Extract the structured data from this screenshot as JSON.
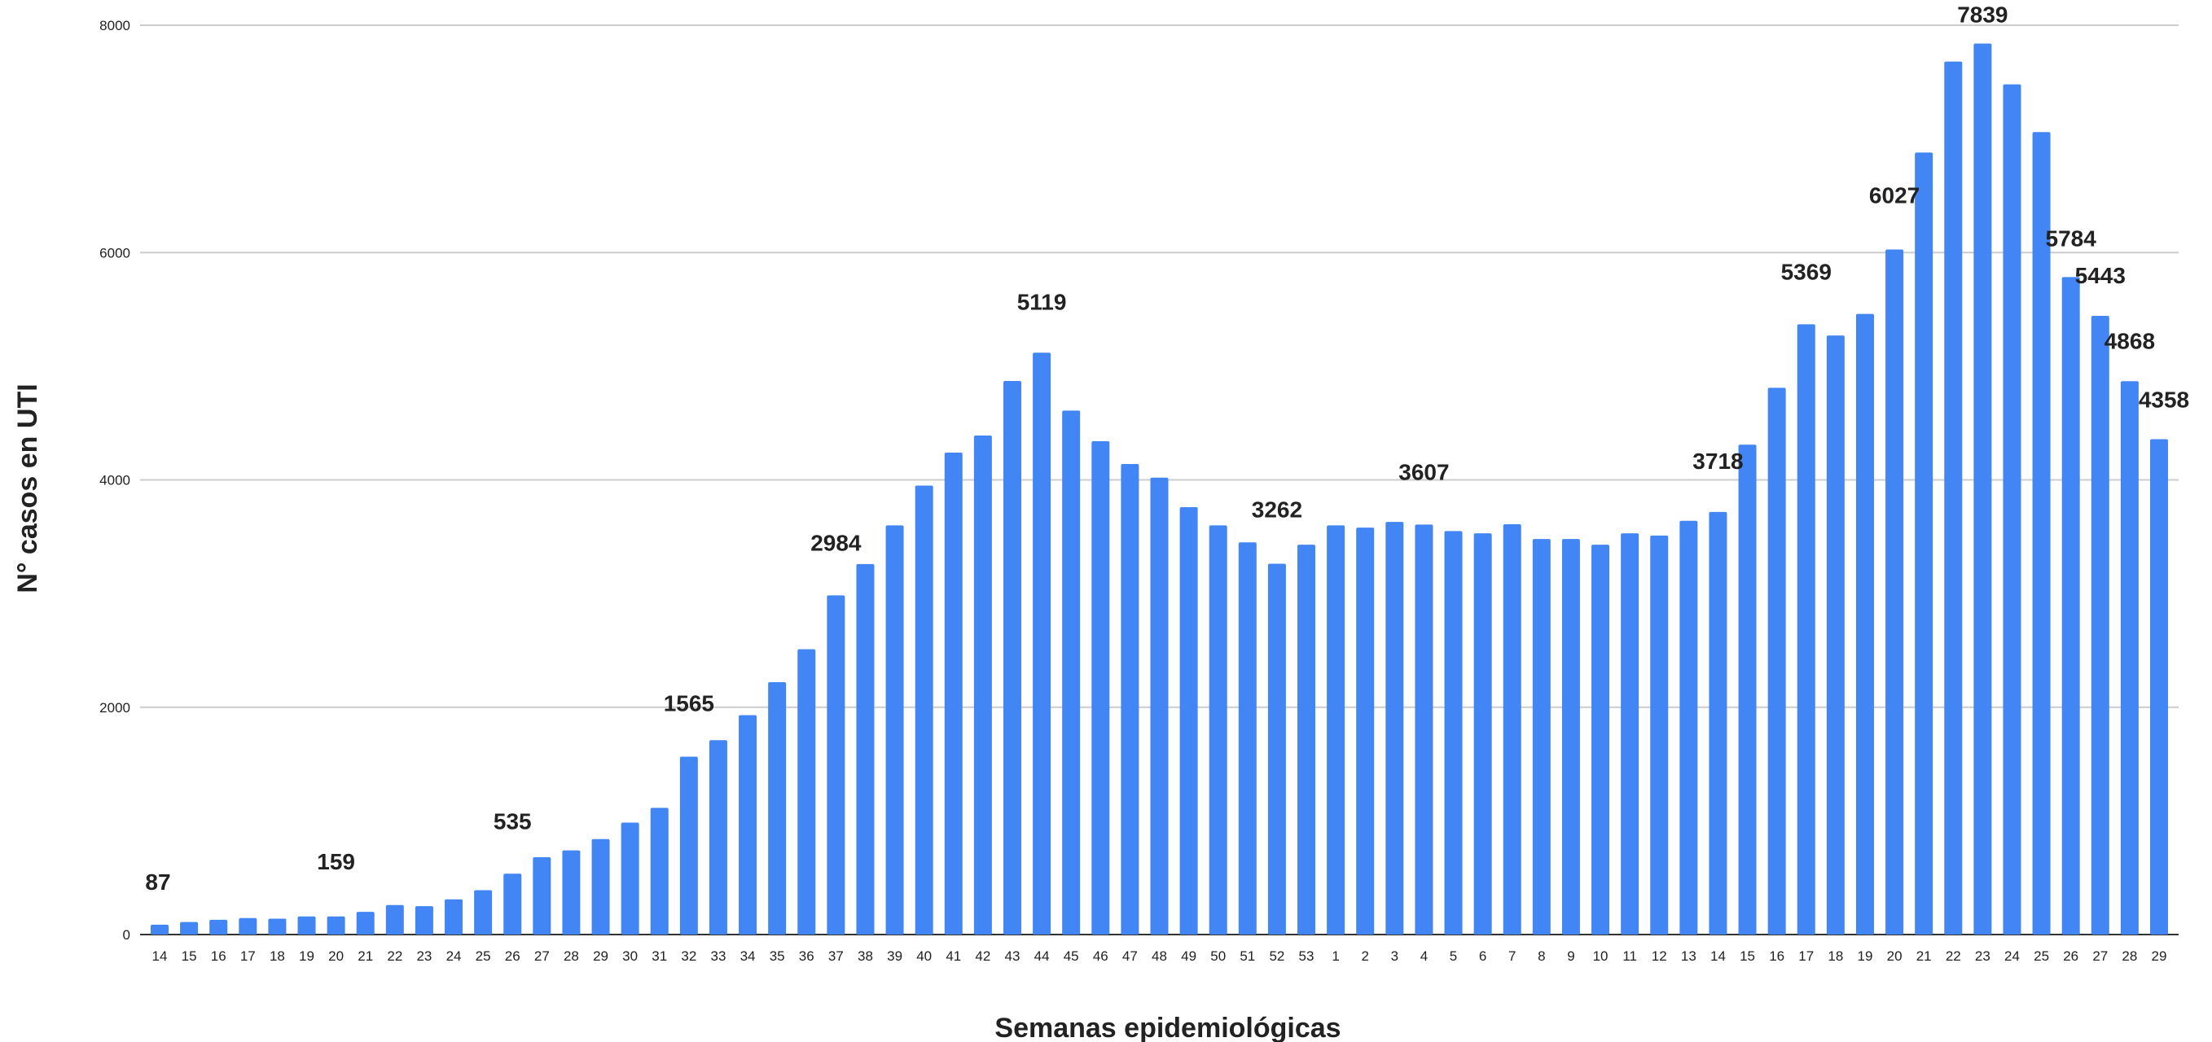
{
  "chart_data": {
    "type": "bar",
    "title": "",
    "xlabel": "Semanas epidemiológicas",
    "ylabel": "N° casos en UTI",
    "ylim": [
      0,
      8000
    ],
    "yticks": [
      0,
      2000,
      4000,
      6000,
      8000
    ],
    "grid": true,
    "legend": "none",
    "bar_color": "#4285f4",
    "categories": [
      "14",
      "15",
      "16",
      "17",
      "18",
      "19",
      "20",
      "21",
      "22",
      "23",
      "24",
      "25",
      "26",
      "27",
      "28",
      "29",
      "30",
      "31",
      "32",
      "33",
      "34",
      "35",
      "36",
      "37",
      "38",
      "39",
      "40",
      "41",
      "42",
      "43",
      "44",
      "45",
      "46",
      "47",
      "48",
      "49",
      "50",
      "51",
      "52",
      "53",
      "1",
      "2",
      "3",
      "4",
      "5",
      "6",
      "7",
      "8",
      "9",
      "10",
      "11",
      "12",
      "13",
      "14",
      "15",
      "16",
      "17",
      "18",
      "19",
      "20",
      "21",
      "22",
      "23",
      "24",
      "25",
      "26",
      "27",
      "28",
      "29"
    ],
    "values": [
      87,
      110,
      130,
      145,
      140,
      159,
      159,
      200,
      260,
      250,
      310,
      390,
      535,
      680,
      740,
      840,
      985,
      1115,
      1565,
      1710,
      1930,
      2220,
      2510,
      2984,
      3260,
      3600,
      3950,
      4240,
      4390,
      4870,
      5119,
      4610,
      4340,
      4140,
      4020,
      3760,
      3600,
      3450,
      3262,
      3430,
      3600,
      3580,
      3630,
      3607,
      3550,
      3530,
      3610,
      3480,
      3480,
      3430,
      3530,
      3510,
      3640,
      3718,
      4310,
      4810,
      5369,
      5270,
      5460,
      6027,
      6880,
      7680,
      7839,
      7480,
      7060,
      5784,
      5443,
      4868,
      4358
    ],
    "data_labels": [
      {
        "index": 0,
        "text": "87"
      },
      {
        "index": 6,
        "text": "159"
      },
      {
        "index": 12,
        "text": "535"
      },
      {
        "index": 18,
        "text": "1565"
      },
      {
        "index": 23,
        "text": "2984"
      },
      {
        "index": 30,
        "text": "5119"
      },
      {
        "index": 38,
        "text": "3262"
      },
      {
        "index": 43,
        "text": "3607"
      },
      {
        "index": 53,
        "text": "3718"
      },
      {
        "index": 56,
        "text": "5369"
      },
      {
        "index": 59,
        "text": "6027"
      },
      {
        "index": 62,
        "text": "7839"
      },
      {
        "index": 65,
        "text": "5784"
      },
      {
        "index": 66,
        "text": "5443"
      },
      {
        "index": 67,
        "text": "4868"
      },
      {
        "index": 68,
        "text": "4358"
      }
    ]
  }
}
